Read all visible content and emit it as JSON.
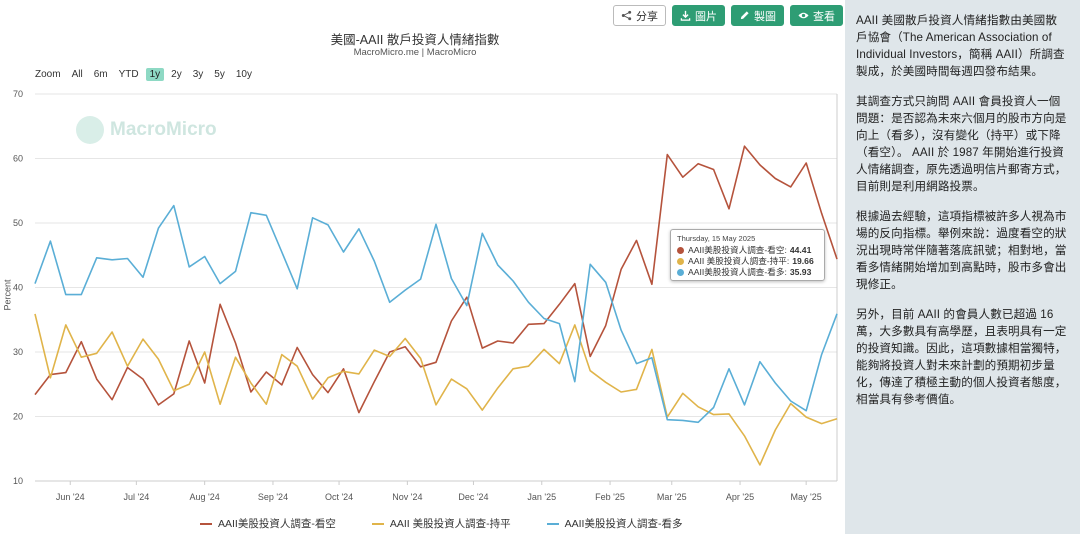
{
  "toolbar": {
    "share_label": "分享",
    "image_label": "圖片",
    "make_label": "製圖",
    "view_label": "查看"
  },
  "header": {
    "title": "美國-AAII 散戶投資人情緒指數",
    "subtitle": "MacroMicro.me | MacroMicro"
  },
  "zoom": {
    "label": "Zoom",
    "options": [
      "All",
      "6m",
      "YTD",
      "1y",
      "2y",
      "3y",
      "5y",
      "10y"
    ],
    "active": "1y"
  },
  "watermark": "MacroMicro",
  "tooltip": {
    "date": "Thursday, 15 May 2025",
    "rows": [
      {
        "label": "AAII美股投資人調查-看空:",
        "value": "44.41",
        "color": "#b5533c"
      },
      {
        "label": "AAII 美股投資人調查-持平:",
        "value": "19.66",
        "color": "#e0b44a"
      },
      {
        "label": "AAII美股投資人調查-看多:",
        "value": "35.93",
        "color": "#5aaed6"
      }
    ]
  },
  "colors": {
    "bearish": "#b5533c",
    "neutral": "#e0b44a",
    "bullish": "#5aaed6",
    "accent": "#2e9d74"
  },
  "description": {
    "p1": "AAII 美國散戶投資人情緒指數由美國散戶協會（The American Association of Individual Investors，簡稱 AAII）所調查製成，於美國時間每週四發布結果。",
    "p2": "其調查方式只詢問 AAII 會員投資人一個問題：是否認為未來六個月的股市方向是向上（看多），沒有變化（持平）或下降（看空）。 AAII 於 1987 年開始進行投資人情緒調查，原先透過明信片郵寄方式，目前則是利用網路投票。",
    "p3": "根據過去經驗，這項指標被許多人視為市場的反向指標。舉例來說：過度看空的狀況出現時常伴隨著落底訊號；相對地，當看多情緒開始增加到高點時，股市多會出現修正。",
    "p4": "另外，目前 AAII 的會員人數已超過 16 萬，大多數具有高學歷，且表明具有一定的投資知識。因此，這項數據相當獨特，能夠將投資人對未來計劃的預期初步量化，傳達了積極主動的個人投資者態度，相當具有參考價值。"
  },
  "chart_data": {
    "type": "line",
    "ylabel": "Percent",
    "ylim": [
      10,
      70
    ],
    "yticks": [
      10,
      20,
      30,
      40,
      50,
      60,
      70
    ],
    "xlim": [
      "2024-05-16",
      "2025-05-15"
    ],
    "xtick_labels": [
      "Jun '24",
      "Jul '24",
      "Aug '24",
      "Sep '24",
      "Oct '24",
      "Nov '24",
      "Dec '24",
      "Jan '25",
      "Feb '25",
      "Mar '25",
      "Apr '25",
      "May '25"
    ],
    "xtick_dates": [
      "2024-06-01",
      "2024-07-01",
      "2024-08-01",
      "2024-09-01",
      "2024-10-01",
      "2024-11-01",
      "2024-12-01",
      "2025-01-01",
      "2025-02-01",
      "2025-03-01",
      "2025-04-01",
      "2025-05-01"
    ],
    "grid": true,
    "legend": "bottom",
    "x": [
      "2024-05-16",
      "2024-05-23",
      "2024-05-30",
      "2024-06-06",
      "2024-06-13",
      "2024-06-20",
      "2024-06-27",
      "2024-07-04",
      "2024-07-11",
      "2024-07-18",
      "2024-07-25",
      "2024-08-01",
      "2024-08-08",
      "2024-08-15",
      "2024-08-22",
      "2024-08-29",
      "2024-09-05",
      "2024-09-12",
      "2024-09-19",
      "2024-09-26",
      "2024-10-03",
      "2024-10-10",
      "2024-10-17",
      "2024-10-24",
      "2024-10-31",
      "2024-11-07",
      "2024-11-14",
      "2024-11-21",
      "2024-11-28",
      "2024-12-05",
      "2024-12-12",
      "2024-12-19",
      "2024-12-26",
      "2025-01-02",
      "2025-01-09",
      "2025-01-16",
      "2025-01-23",
      "2025-01-30",
      "2025-02-06",
      "2025-02-13",
      "2025-02-20",
      "2025-02-27",
      "2025-03-06",
      "2025-03-13",
      "2025-03-20",
      "2025-03-27",
      "2025-04-03",
      "2025-04-10",
      "2025-04-17",
      "2025-04-24",
      "2025-05-01",
      "2025-05-08",
      "2025-05-15"
    ],
    "series": [
      {
        "name": "AAII美股投資人調查-看空",
        "color": "#b5533c",
        "values": [
          23.4,
          26.5,
          26.8,
          31.6,
          25.8,
          22.6,
          27.6,
          25.8,
          21.8,
          23.5,
          31.7,
          25.2,
          37.4,
          31.4,
          23.8,
          26.9,
          24.9,
          30.7,
          26.5,
          23.7,
          27.4,
          20.6,
          25.4,
          30.0,
          30.8,
          27.7,
          28.4,
          34.8,
          38.5,
          30.6,
          31.7,
          31.4,
          34.3,
          34.4,
          37.4,
          40.6,
          29.3,
          34.1,
          42.8,
          47.3,
          40.5,
          60.6,
          57.1,
          59.2,
          58.3,
          52.2,
          61.9,
          59.0,
          56.9,
          55.6,
          59.3,
          51.5,
          44.41
        ]
      },
      {
        "name": "AAII 美股投資人調查-持平",
        "color": "#e0b44a",
        "values": [
          35.9,
          26.0,
          34.2,
          29.2,
          29.8,
          33.1,
          27.8,
          32.0,
          28.9,
          24.0,
          25.0,
          30.0,
          21.9,
          29.2,
          25.2,
          21.9,
          29.6,
          27.8,
          22.7,
          26.0,
          27.0,
          26.6,
          30.3,
          29.3,
          32.1,
          29.0,
          21.8,
          25.8,
          24.3,
          21.0,
          24.4,
          27.4,
          27.8,
          30.4,
          28.2,
          34.2,
          27.1,
          25.3,
          23.8,
          24.2,
          30.4,
          19.9,
          23.6,
          21.5,
          20.3,
          20.4,
          17.0,
          12.5,
          17.9,
          22.0,
          19.9,
          18.9,
          19.66
        ]
      },
      {
        "name": "AAII美股投資人調查-看多",
        "color": "#5aaed6",
        "values": [
          40.6,
          47.2,
          38.9,
          38.9,
          44.6,
          44.3,
          44.5,
          41.6,
          49.2,
          52.7,
          43.2,
          44.8,
          40.6,
          42.5,
          51.6,
          51.2,
          45.5,
          39.8,
          50.8,
          49.7,
          45.5,
          49.1,
          44.1,
          37.7,
          39.6,
          41.3,
          49.8,
          41.4,
          37.2,
          48.4,
          43.5,
          41.0,
          37.7,
          35.2,
          34.4,
          25.4,
          43.6,
          40.8,
          33.4,
          28.2,
          29.1,
          19.5,
          19.4,
          19.1,
          21.4,
          27.4,
          21.8,
          28.5,
          25.2,
          22.4,
          20.9,
          29.6,
          35.93
        ]
      }
    ]
  }
}
